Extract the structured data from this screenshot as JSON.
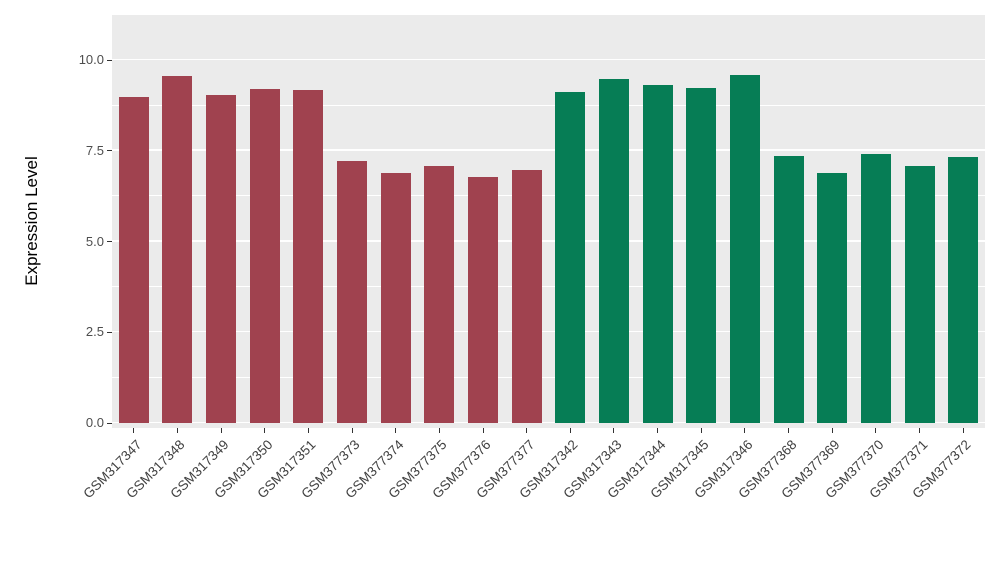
{
  "chart_data": {
    "type": "bar",
    "title": "",
    "xlabel": "",
    "ylabel": "Expression Level",
    "ylim": [
      0,
      10
    ],
    "grid": "on",
    "legend": "none",
    "panel_background": "#EBEBEB",
    "grid_color": "#FFFFFF",
    "ytick_values": [
      0,
      2.5,
      5,
      7.5,
      10
    ],
    "ytick_labels": [
      "0.0",
      "2.5",
      "5.0",
      "7.5",
      "10.0"
    ],
    "minor_ytick_values": [
      1.25,
      3.75,
      6.25,
      8.75
    ],
    "series": [
      {
        "name": "maroon-group",
        "color": "#A0424F",
        "categories": [
          "GSM317347",
          "GSM317348",
          "GSM317349",
          "GSM317350",
          "GSM317351",
          "GSM377373",
          "GSM377374",
          "GSM377375",
          "GSM377376",
          "GSM377377"
        ],
        "values": [
          8.97,
          9.55,
          9.05,
          9.2,
          9.18,
          7.22,
          6.9,
          7.08,
          6.78,
          6.97
        ]
      },
      {
        "name": "green-group",
        "color": "#067D55",
        "categories": [
          "GSM317342",
          "GSM317343",
          "GSM317344",
          "GSM317345",
          "GSM317346",
          "GSM377368",
          "GSM377369",
          "GSM377370",
          "GSM377371",
          "GSM377372"
        ],
        "values": [
          9.13,
          9.48,
          9.32,
          9.23,
          9.58,
          7.35,
          6.9,
          7.4,
          7.08,
          7.33
        ]
      }
    ]
  }
}
